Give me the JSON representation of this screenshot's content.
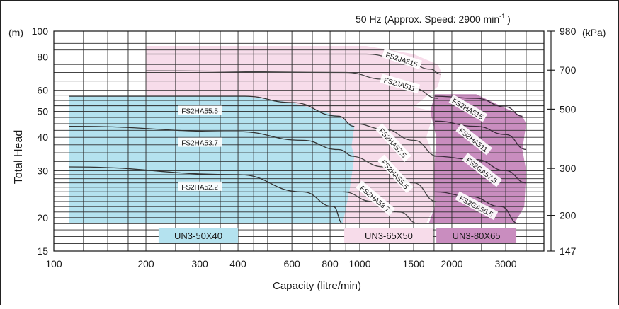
{
  "chart_data": {
    "type": "performance-curve",
    "title": "50 Hz (Approx. Speed: 2900 min",
    "title_sup": "-1",
    "title_close": ")",
    "xlabel": "Capacity (litre/min)",
    "ylabel": "Total Head",
    "y_unit_left": "(m)",
    "y_unit_right": "(kPa)",
    "x_scale": "log",
    "y_scale": "log",
    "xlim": [
      100,
      4000
    ],
    "ylim": [
      15,
      100
    ],
    "x_ticks": [
      {
        "v": 100,
        "label": "100"
      },
      {
        "v": 200,
        "label": "200"
      },
      {
        "v": 300,
        "label": "300"
      },
      {
        "v": 400,
        "label": "400"
      },
      {
        "v": 600,
        "label": "600"
      },
      {
        "v": 800,
        "label": "800"
      },
      {
        "v": 1000,
        "label": "1000"
      },
      {
        "v": 1500,
        "label": "1500"
      },
      {
        "v": 2000,
        "label": "2000"
      },
      {
        "v": 3000,
        "label": "3000"
      }
    ],
    "y_ticks": [
      {
        "v": 15,
        "label": "15"
      },
      {
        "v": 20,
        "label": "20"
      },
      {
        "v": 30,
        "label": "30"
      },
      {
        "v": 40,
        "label": "40"
      },
      {
        "v": 50,
        "label": "50"
      },
      {
        "v": 60,
        "label": "60"
      },
      {
        "v": 80,
        "label": "80"
      },
      {
        "v": 100,
        "label": "100"
      }
    ],
    "y_ticks_right": [
      {
        "v": 15,
        "label": "147"
      },
      {
        "v": 20.4,
        "label": "200"
      },
      {
        "v": 30.6,
        "label": "300"
      },
      {
        "v": 51,
        "label": "500"
      },
      {
        "v": 71.4,
        "label": "700"
      },
      {
        "v": 100,
        "label": "980"
      }
    ],
    "regions": [
      {
        "name": "UN3-65X50",
        "color": "#f7dcea",
        "polygon": [
          [
            200,
            88
          ],
          [
            1050,
            88
          ],
          [
            1500,
            82
          ],
          [
            1800,
            75
          ],
          [
            1850,
            70
          ],
          [
            1800,
            62
          ],
          [
            1500,
            52
          ],
          [
            1750,
            50
          ],
          [
            1650,
            40
          ],
          [
            1780,
            32
          ],
          [
            1750,
            22
          ],
          [
            1650,
            19
          ],
          [
            800,
            19
          ],
          [
            200,
            20
          ]
        ]
      },
      {
        "name": "UN3-80X65",
        "color": "#c98dbf",
        "polygon": [
          [
            1760,
            58
          ],
          [
            2400,
            58
          ],
          [
            3400,
            48
          ],
          [
            3500,
            45
          ],
          [
            3400,
            36
          ],
          [
            3500,
            30
          ],
          [
            3450,
            22
          ],
          [
            3200,
            19
          ],
          [
            1680,
            19
          ],
          [
            1760,
            22
          ],
          [
            1750,
            30
          ],
          [
            1780,
            40
          ],
          [
            1700,
            50
          ]
        ]
      },
      {
        "name": "UN3-50X40",
        "color": "#b4e2ef",
        "polygon": [
          [
            112,
            57
          ],
          [
            420,
            57
          ],
          [
            600,
            54
          ],
          [
            850,
            48
          ],
          [
            960,
            44
          ],
          [
            940,
            37
          ],
          [
            960,
            34
          ],
          [
            930,
            26
          ],
          [
            880,
            19
          ],
          [
            112,
            19
          ]
        ]
      }
    ],
    "curves": [
      {
        "name": "FS2JA515",
        "color": "#444444",
        "points": [
          [
            200,
            82
          ],
          [
            1050,
            82
          ],
          [
            1400,
            78
          ],
          [
            1700,
            72
          ],
          [
            1840,
            69
          ]
        ]
      },
      {
        "name": "FS2JA511",
        "color": "#444444",
        "points": [
          [
            200,
            71
          ],
          [
            900,
            70
          ],
          [
            1200,
            66
          ],
          [
            1500,
            61
          ],
          [
            1800,
            56
          ]
        ]
      },
      {
        "name": "FS2HA55.5",
        "color": "#333333",
        "points": [
          [
            112,
            57
          ],
          [
            420,
            57
          ],
          [
            600,
            54
          ],
          [
            850,
            48
          ],
          [
            960,
            44
          ]
        ]
      },
      {
        "name": "FS2HA53.7",
        "color": "#333333",
        "points": [
          [
            112,
            44
          ],
          [
            400,
            42
          ],
          [
            650,
            39
          ],
          [
            850,
            36
          ],
          [
            960,
            34
          ]
        ]
      },
      {
        "name": "FS2HA52.2",
        "color": "#333333",
        "points": [
          [
            112,
            31
          ],
          [
            400,
            29
          ],
          [
            650,
            25
          ],
          [
            820,
            22
          ],
          [
            880,
            19
          ]
        ]
      },
      {
        "name": "FS2HA57.5",
        "color": "#444444",
        "points": [
          [
            960,
            45
          ],
          [
            1200,
            43
          ],
          [
            1500,
            39
          ],
          [
            1800,
            34
          ]
        ]
      },
      {
        "name": "FS2HA55.5",
        "color": "#444444",
        "points": [
          [
            930,
            34
          ],
          [
            1200,
            31
          ],
          [
            1500,
            27
          ],
          [
            1780,
            23
          ]
        ]
      },
      {
        "name": "FS2HA53.7",
        "color": "#444444",
        "points": [
          [
            880,
            25
          ],
          [
            1100,
            23
          ],
          [
            1350,
            21
          ],
          [
            1550,
            19
          ]
        ]
      },
      {
        "name": "FS2HA515",
        "color": "#3a2a3a",
        "points": [
          [
            1760,
            57
          ],
          [
            2400,
            56
          ],
          [
            3000,
            52
          ],
          [
            3400,
            48
          ]
        ]
      },
      {
        "name": "FS2HA511",
        "color": "#3a2a3a",
        "points": [
          [
            1760,
            46
          ],
          [
            2400,
            44
          ],
          [
            3000,
            41
          ],
          [
            3500,
            36
          ]
        ]
      },
      {
        "name": "FS2GA57.5",
        "color": "#3a2a3a",
        "points": [
          [
            1750,
            34
          ],
          [
            2400,
            33
          ],
          [
            3000,
            30
          ],
          [
            3500,
            27
          ]
        ]
      },
      {
        "name": "FS2GA55.5",
        "color": "#3a2a3a",
        "points": [
          [
            1760,
            25
          ],
          [
            2300,
            24
          ],
          [
            2900,
            22
          ],
          [
            3300,
            19
          ]
        ]
      }
    ],
    "curve_labels": [
      {
        "text": "FS2JA515",
        "x": 1370,
        "y": 78,
        "rot": 18
      },
      {
        "text": "FS2JA511",
        "x": 1350,
        "y": 63,
        "rot": 16
      },
      {
        "text": "FS2HA55.5",
        "x": 300,
        "y": 50,
        "rot": 0
      },
      {
        "text": "FS2HA53.7",
        "x": 300,
        "y": 38,
        "rot": 0
      },
      {
        "text": "FS2HA52.2",
        "x": 300,
        "y": 26,
        "rot": 0
      },
      {
        "text": "FS2HA57.5",
        "x": 1280,
        "y": 38,
        "rot": 48
      },
      {
        "text": "FS2HA55.5",
        "x": 1300,
        "y": 29,
        "rot": 48
      },
      {
        "text": "FS2HA53.7",
        "x": 1120,
        "y": 23.5,
        "rot": 40
      },
      {
        "text": "FS2HA515",
        "x": 2250,
        "y": 51,
        "rot": 30
      },
      {
        "text": "FS2HA511",
        "x": 2350,
        "y": 39,
        "rot": 38
      },
      {
        "text": "FS2GA57.5",
        "x": 2500,
        "y": 30,
        "rot": 38
      },
      {
        "text": "FS2GA55.5",
        "x": 2400,
        "y": 22,
        "rot": 28
      }
    ],
    "legend": [
      {
        "name": "UN3-50X40",
        "color": "#b4e2ef",
        "x_from": 220,
        "x_to": 400
      },
      {
        "name": "UN3-65X50",
        "color": "#f7dcea",
        "x_from": 890,
        "x_to": 1740
      },
      {
        "name": "UN3-80X65",
        "color": "#c98dbf",
        "x_from": 1780,
        "x_to": 3250
      }
    ]
  }
}
